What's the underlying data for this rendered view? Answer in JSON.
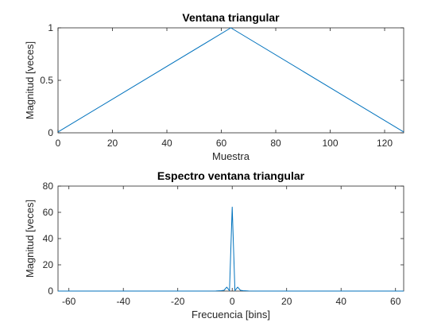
{
  "chart_data": [
    {
      "type": "line",
      "title": "Ventana triangular",
      "xlabel": "Muestra",
      "ylabel": "Magnitud [veces]",
      "xlim": [
        0,
        127
      ],
      "ylim": [
        0,
        1
      ],
      "xticks": [
        0,
        20,
        40,
        60,
        80,
        100,
        120
      ],
      "yticks": [
        0,
        0.5,
        1
      ],
      "grid": false,
      "color": "#0072BD",
      "series": [
        {
          "x": [
            0,
            63.5,
            127
          ],
          "y": [
            0.0078,
            1.0,
            0.0078
          ]
        }
      ]
    },
    {
      "type": "line",
      "title": "Espectro ventana triangular",
      "xlabel": "Frecuencia [bins]",
      "ylabel": "Magnitud [veces]",
      "xlim": [
        -64,
        63
      ],
      "ylim": [
        0,
        80
      ],
      "xticks": [
        -60,
        -40,
        -20,
        0,
        20,
        40,
        60
      ],
      "yticks": [
        0,
        20,
        40,
        60,
        80
      ],
      "grid": false,
      "color": "#0072BD",
      "series": [
        {
          "x": [
            -64,
            -10,
            -6,
            -4,
            -3,
            -2,
            -1,
            0,
            1,
            2,
            3,
            4,
            6,
            10,
            63
          ],
          "y": [
            0,
            0,
            0.1,
            0.3,
            0.6,
            3.0,
            0.3,
            64.0,
            0.3,
            3.0,
            0.6,
            0.3,
            0.1,
            0,
            0
          ]
        }
      ]
    }
  ]
}
